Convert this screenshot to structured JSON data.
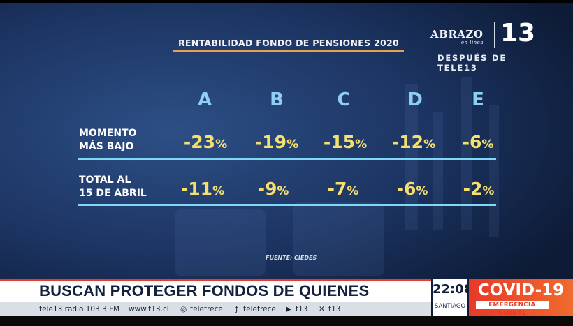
{
  "graphic": {
    "title": "RENTABILIDAD FONDO DE PENSIONES 2020",
    "columns": [
      "A",
      "B",
      "C",
      "D",
      "E"
    ],
    "rows": [
      {
        "label_line1": "MOMENTO",
        "label_line2": "MÁS BAJO",
        "values": [
          "-23",
          "-19",
          "-15",
          "-12",
          "-6"
        ]
      },
      {
        "label_line1": "TOTAL  AL",
        "label_line2": "15 DE ABRIL",
        "values": [
          "-11",
          "-9",
          "-7",
          "-6",
          "-2"
        ]
      }
    ],
    "percent_sign": "%",
    "source": "FUENTE: CIEDES"
  },
  "branding": {
    "abrazo": "ABRAZO",
    "abrazo_sub": "en línea",
    "channel_number": "13",
    "after": "DESPUÉS DE TELE13"
  },
  "lower_third": {
    "headline": "BUSCAN PROTEGER FONDOS DE QUIENES JUBILARÁN",
    "social": {
      "radio": "tele13 radio 103.3 FM",
      "web": "www.t13.cl",
      "instagram": "teletrece",
      "facebook": "teletrece",
      "youtube": "t13",
      "twitter": "t13"
    },
    "time": "22:08",
    "city": "SANTIAGO",
    "covid_title": "COVID-19",
    "covid_sub": "EMERGENCIA GLOBAL"
  },
  "colors": {
    "accent_orange": "#e6a14a",
    "column_head": "#8fd0f2",
    "value_yellow": "#f5e06e",
    "rule_cyan": "#7fd8f4",
    "covid_red": "#e73a2a"
  }
}
